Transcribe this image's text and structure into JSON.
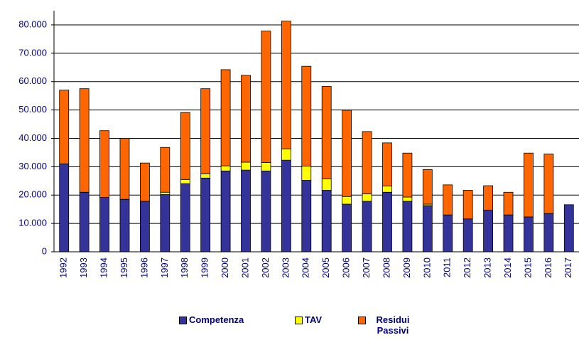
{
  "chart_data": {
    "type": "stacked_bar",
    "categories": [
      "1992",
      "1993",
      "1994",
      "1995",
      "1996",
      "1997",
      "1998",
      "1999",
      "2000",
      "2001",
      "2002",
      "2003",
      "2004",
      "2005",
      "2006",
      "2007",
      "2008",
      "2009",
      "2010",
      "2011",
      "2012",
      "2013",
      "2014",
      "2015",
      "2016",
      "2017"
    ],
    "series": [
      {
        "name": "Competenza",
        "color": "#333399",
        "values": [
          31000,
          21000,
          19200,
          18500,
          17800,
          20200,
          24000,
          26000,
          28500,
          28800,
          28500,
          32300,
          25200,
          21700,
          16800,
          17800,
          21000,
          17800,
          16300,
          13000,
          11600,
          14700,
          13000,
          12300,
          13500,
          16600
        ]
      },
      {
        "name": "TAV",
        "color": "#ffff00",
        "values": [
          0,
          0,
          0,
          0,
          0,
          800,
          1500,
          1500,
          1800,
          2800,
          3000,
          4000,
          5000,
          4000,
          2700,
          2600,
          2200,
          1500,
          500,
          0,
          0,
          0,
          0,
          0,
          0,
          0
        ]
      },
      {
        "name": "Residui Passivi",
        "color": "#ff6600",
        "values": [
          26000,
          36500,
          23500,
          21500,
          13500,
          15800,
          23600,
          30000,
          33900,
          30600,
          46300,
          45000,
          35200,
          32600,
          30400,
          22000,
          15200,
          15500,
          12200,
          10600,
          10100,
          8600,
          8000,
          22500,
          21000,
          0
        ]
      }
    ],
    "ylim": [
      0,
      85000
    ],
    "yticks": [
      0,
      {
        "value": 10000,
        "label": "10.000"
      },
      {
        "value": 20000,
        "label": "20.000"
      },
      {
        "value": 30000,
        "label": "30.000"
      },
      {
        "value": 40000,
        "label": "40.000"
      },
      {
        "value": 50000,
        "label": "50.000"
      },
      {
        "value": 60000,
        "label": "60.000"
      },
      {
        "value": 70000,
        "label": "70.000"
      },
      {
        "value": 80000,
        "label": "80.000"
      }
    ],
    "grid": true
  }
}
